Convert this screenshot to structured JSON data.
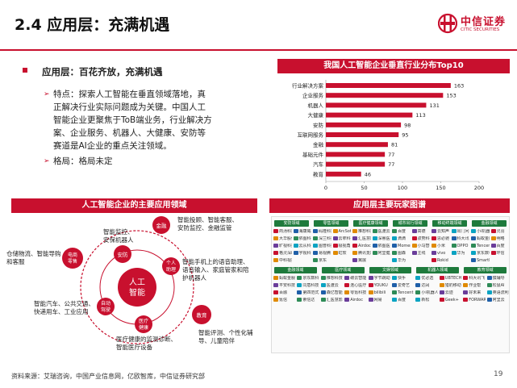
{
  "slide": {
    "title": "2.4 应用层：充满机遇",
    "page_number": "19",
    "source": "资料来源：艾瑞咨询，中国产业信息网，亿欧智库，中信证券研究部"
  },
  "logo": {
    "cn": "中信证券",
    "en": "CITIC SECURITIES",
    "color": "#c8102e"
  },
  "bullets": {
    "main": "应用层：百花齐放，充满机遇",
    "sub1_lines": [
      "特点：探索人工智能在垂直领域落地，真",
      "正解决行业实际问题成为关键。中国人工",
      "智能企业更聚焦于ToB端业务，行业解决方",
      "案、企业服务、机器人、大健康、安防等",
      "赛道是AI企业的重点关注领域。"
    ],
    "sub2": "格局：格局未定"
  },
  "headers": {
    "chart": "我国人工智能企业垂直行业分布Top10",
    "diagram": "人工智能企业的主要应用领域",
    "players": "应用层主要玩家图谱"
  },
  "chart_data": {
    "type": "bar",
    "orientation": "horizontal",
    "categories": [
      "行业解决方案",
      "企业服务",
      "机器人",
      "大健康",
      "安防",
      "互联网服务",
      "金融",
      "基础元件",
      "汽车",
      "教育"
    ],
    "values": [
      163,
      153,
      131,
      113,
      98,
      95,
      81,
      77,
      77,
      46
    ],
    "xticks": [
      0,
      50,
      100,
      150,
      200
    ],
    "xlim": [
      0,
      200
    ],
    "bar_color": "#c8102e",
    "grid": false
  },
  "diagram": {
    "center": [
      "人工",
      "智能"
    ],
    "nodes": [
      {
        "label": "金融",
        "lines": []
      },
      {
        "label": "安防",
        "lines": []
      },
      {
        "label": "个人\n助理",
        "lines": []
      },
      {
        "label": "电商\n零售",
        "lines": []
      },
      {
        "label": "自动\n驾驶",
        "lines": []
      },
      {
        "label": "医疗\n健康",
        "lines": []
      },
      {
        "label": "教育",
        "lines": []
      }
    ],
    "texts": {
      "finance": "智能投顾、智能客服、\n安防监控、金融监管",
      "security": "智能监控、\n安保机器人",
      "assistant": "智能手机上的语音助理、\n语音输入、家庭管家和陪\n护机器人",
      "retail": "仓储物流、智能导购\n和客服",
      "autodrive": "智能汽车、公共交通、\n快递用车、工业应用",
      "medical": "医疗健康的监测诊断、\n智能医疗设备",
      "education": "智能评测、个性化辅\n导、儿童陪伴"
    }
  },
  "players": {
    "top_categories": [
      "安防领域",
      "零售领域",
      "医疗健康领域",
      "城市出行领域",
      "移动终端领域",
      "金融领域"
    ],
    "bottom_categories": [
      "金融领域",
      "医疗领域",
      "文娱领域",
      "机器人领域",
      "教育领域"
    ],
    "top_cells": [
      [
        "商汤科技",
        "海康威视",
        "大华股份",
        "依图科技",
        "旷视科技",
        "云从科技",
        "格灵深瞳",
        "宇视科技",
        "中科视拓"
      ],
      [
        "码隆科技",
        "ArcSoft",
        "深兰科技",
        "云拿科技",
        "图普科技",
        "极视角",
        "易视腾",
        "虹软",
        "京东"
      ],
      [
        "推想科技",
        "医渡云",
        "汇医慧影",
        "深睿医疗",
        "Airdoc",
        "依图医疗",
        "腾讯觅影",
        "阿里健康",
        "翼展"
      ],
      [
        "百度",
        "高德",
        "滴滴",
        "驭势科技",
        "Momenta",
        "小马智行",
        "图森",
        "主线",
        "华为"
      ],
      [
        "云知声",
        "出门问问",
        "思必驰",
        "科大讯飞",
        "小米",
        "OPPO",
        "vivo",
        "华为",
        "Rokid"
      ],
      [
        "小i机器人",
        "灵羽",
        "蚂蚁金服",
        "明略",
        "Tencent",
        "百度",
        "京东数科",
        "环信",
        "SmartMore"
      ]
    ],
    "bottom_cells": [
      [
        "蚂蚁金服",
        "京东数科",
        "平安科技",
        "同盾科技",
        "百融",
        "第四范式",
        "氪信",
        "索信达"
      ],
      [
        "推想科技",
        "碳云智能",
        "医渡云",
        "连心医疗",
        "森亿智能",
        "零氪科技",
        "汇医慧影",
        "Airdoc"
      ],
      [
        "字节跳动",
        "快手",
        "YOUKU",
        "爱奇艺",
        "bilibili",
        "Tencent",
        "网易",
        "百度"
      ],
      [
        "优必选",
        "UBTECH",
        "达闼",
        "猎豹移动",
        "小i机器人",
        "云迹",
        "新松",
        "Geek+"
      ],
      [
        "科大讯飞",
        "猿辅导",
        "作业帮",
        "松鼠AI",
        "好未来",
        "英语流利说",
        "FORWARDX",
        "阿里云"
      ]
    ]
  },
  "colors": {
    "accent": "#c8102e",
    "green": "#1e7a3c",
    "text": "#222222"
  }
}
